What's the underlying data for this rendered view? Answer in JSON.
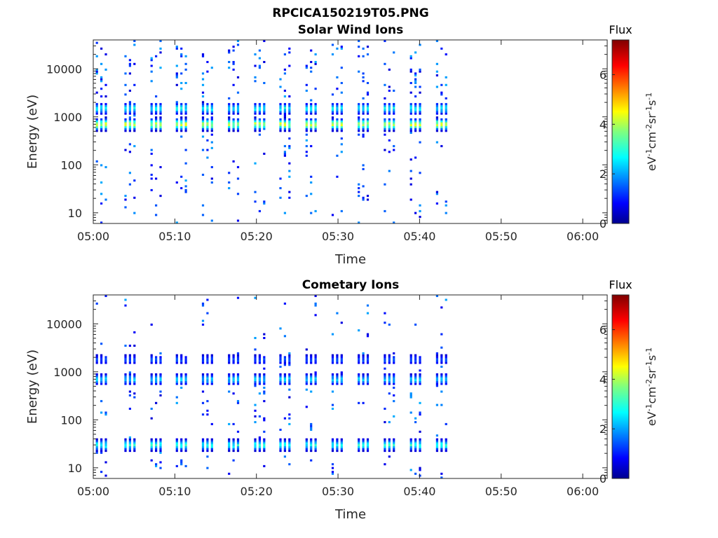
{
  "figure": {
    "title": "RPCICA150219T05.PNG"
  },
  "chart_data": [
    {
      "type": "heatmap",
      "title": "Solar Wind Ions",
      "xlabel": "Time",
      "ylabel": "Energy (eV)",
      "x_ticks": [
        "05:00",
        "05:10",
        "05:20",
        "05:30",
        "05:40",
        "05:50",
        "06:00"
      ],
      "x_range_minutes": [
        0,
        63
      ],
      "y_scale": "log",
      "y_ticks": [
        10,
        100,
        1000,
        10000
      ],
      "y_tick_labels": [
        "10",
        "100",
        "1000",
        "10000"
      ],
      "y_range": [
        6,
        40000
      ],
      "colorbar": {
        "title": "Flux",
        "label": "eV-1cm-2sr-1s-1",
        "ticks": [
          0,
          2,
          4,
          6
        ],
        "range": [
          0,
          7.4
        ],
        "colormap": "jet"
      },
      "grid": false,
      "data_end_minute": 44.5,
      "sweep_minutes": [
        1.0,
        4.5,
        7.7,
        10.8,
        14.0,
        17.2,
        20.4,
        23.5,
        26.7,
        29.9,
        33.1,
        36.3,
        39.5,
        42.7
      ],
      "peaks": [
        {
          "energy": 700,
          "flux": 4.5
        },
        {
          "energy": 1500,
          "flux": 3.0
        }
      ]
    },
    {
      "type": "heatmap",
      "title": "Cometary Ions",
      "xlabel": "Time",
      "ylabel": "Energy (eV)",
      "x_ticks": [
        "05:00",
        "05:10",
        "05:20",
        "05:30",
        "05:40",
        "05:50",
        "06:00"
      ],
      "x_range_minutes": [
        0,
        63
      ],
      "y_scale": "log",
      "y_ticks": [
        10,
        100,
        1000,
        10000
      ],
      "y_tick_labels": [
        "10",
        "100",
        "1000",
        "10000"
      ],
      "y_range": [
        6,
        40000
      ],
      "colorbar": {
        "title": "Flux",
        "label": "eV-1cm-2sr-1s-1",
        "ticks": [
          0,
          2,
          4,
          6
        ],
        "range": [
          0,
          7.4
        ],
        "colormap": "jet"
      },
      "grid": false,
      "data_end_minute": 44.0,
      "sweep_minutes": [
        1.0,
        4.5,
        7.7,
        10.8,
        14.0,
        17.2,
        20.4,
        23.5,
        26.7,
        29.9,
        33.1,
        36.3,
        39.5,
        42.7
      ],
      "peaks": [
        {
          "energy": 700,
          "flux": 2.6
        },
        {
          "energy": 1800,
          "flux": 1.6
        },
        {
          "energy": 30,
          "flux": 3.2
        }
      ]
    }
  ]
}
